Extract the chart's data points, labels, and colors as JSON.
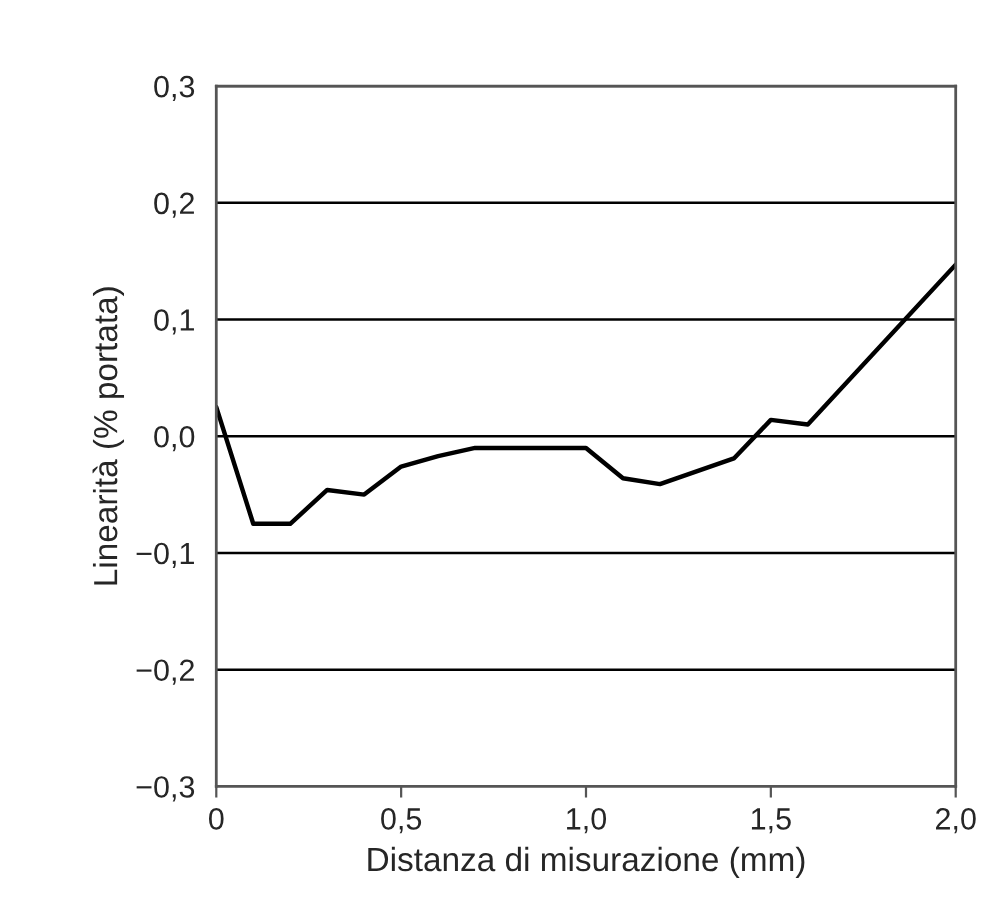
{
  "chart_data": {
    "type": "line",
    "xlabel": "Distanza di misurazione (mm)",
    "ylabel": "Linearità (% portata)",
    "x": [
      0,
      0.1,
      0.2,
      0.3,
      0.4,
      0.5,
      0.6,
      0.7,
      1.0,
      1.1,
      1.2,
      1.4,
      1.5,
      1.6,
      2.0
    ],
    "series": [
      {
        "color": "#000000",
        "values": [
          0.025,
          -0.075,
          -0.075,
          -0.046,
          -0.05,
          -0.026,
          -0.017,
          -0.01,
          -0.01,
          -0.036,
          -0.041,
          -0.019,
          0.014,
          0.01,
          0.147
        ]
      }
    ],
    "xlim": [
      0,
      2.0
    ],
    "ylim": [
      -0.3,
      0.3
    ],
    "xticks": [
      0,
      {
        "value": 0.5,
        "label": "0,5"
      },
      {
        "value": 1.0,
        "label": "1,0"
      },
      {
        "value": 1.5,
        "label": "1,5"
      },
      {
        "value": 2.0,
        "label": "2,0"
      }
    ],
    "yticks": [
      {
        "value": -0.3,
        "label": "−0,3"
      },
      {
        "value": -0.2,
        "label": "−0,2"
      },
      {
        "value": -0.1,
        "label": "−0,1"
      },
      {
        "value": 0.0,
        "label": "0,0"
      },
      {
        "value": 0.1,
        "label": "0,1"
      },
      {
        "value": 0.2,
        "label": "0,2"
      },
      {
        "value": 0.3,
        "label": "0,3"
      }
    ],
    "grid": "y",
    "marker": "none",
    "line_style": "solid"
  }
}
